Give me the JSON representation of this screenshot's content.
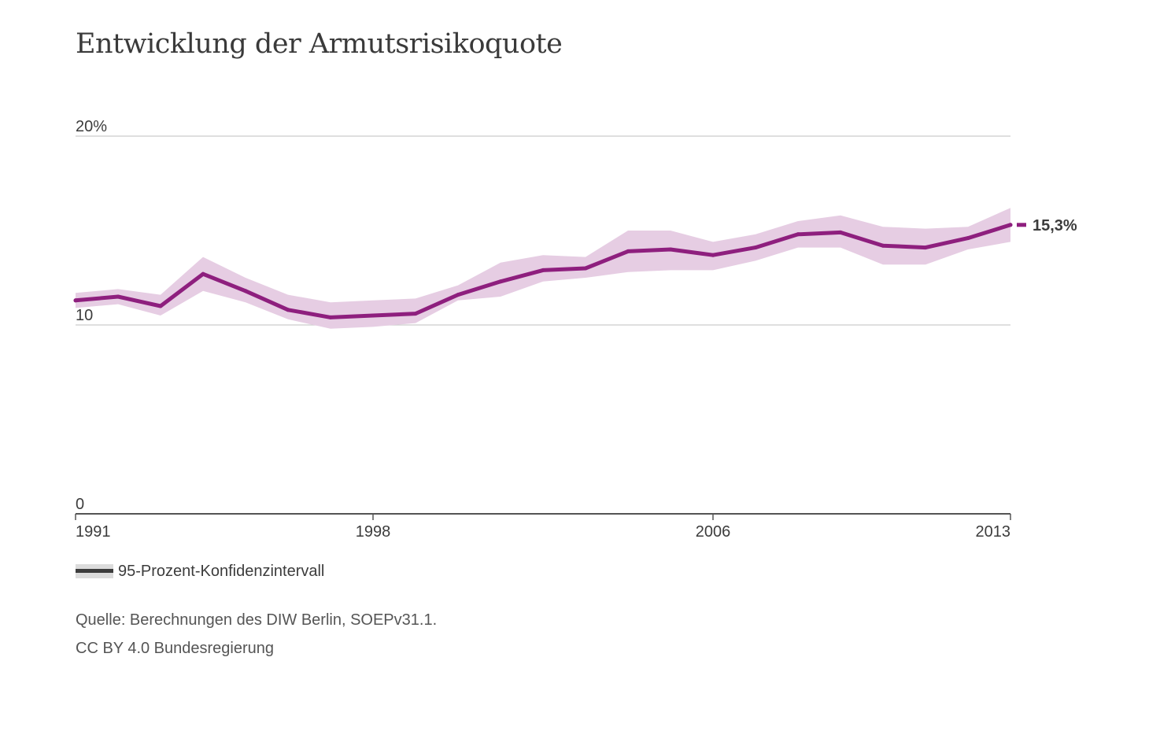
{
  "title": "Entwicklung der Armutsrisikoquote",
  "legend": {
    "label": "95-Prozent-Konfidenzintervall"
  },
  "footer": {
    "source": "Quelle: Berechnungen des DIW Berlin, SOEPv31.1.",
    "license": "CC BY 4.0 Bundesregierung"
  },
  "colors": {
    "line": "#8e1f7e",
    "band": "#e6cde3",
    "grid": "#cccccc",
    "axis": "#555555",
    "text": "#3c3c3c"
  },
  "chart_data": {
    "type": "line",
    "title": "Entwicklung der Armutsrisikoquote",
    "xlabel": "",
    "ylabel": "",
    "xlim": [
      1991,
      2013
    ],
    "ylim": [
      0,
      20
    ],
    "grid": true,
    "y_ticks": [
      {
        "value": 0,
        "label": "0"
      },
      {
        "value": 10,
        "label": "10"
      },
      {
        "value": 20,
        "label": "20%"
      }
    ],
    "x_ticks": [
      {
        "value": 1991,
        "label": "1991"
      },
      {
        "value": 1998,
        "label": "1998"
      },
      {
        "value": 2006,
        "label": "2006"
      },
      {
        "value": 2013,
        "label": "2013"
      }
    ],
    "series": [
      {
        "x": [
          1991,
          1992,
          1993,
          1994,
          1995,
          1996,
          1997,
          1998,
          1999,
          2000,
          2001,
          2002,
          2003,
          2004,
          2005,
          2006,
          2007,
          2008,
          2009,
          2010,
          2011,
          2012,
          2013
        ],
        "values": [
          11.3,
          11.5,
          11.0,
          12.7,
          11.8,
          10.8,
          10.4,
          10.5,
          10.6,
          11.6,
          12.3,
          12.9,
          13.0,
          13.9,
          14.0,
          13.7,
          14.1,
          14.8,
          14.9,
          14.2,
          14.1,
          14.6,
          15.3
        ],
        "lower": [
          10.9,
          11.1,
          10.5,
          11.8,
          11.2,
          10.3,
          9.8,
          9.9,
          10.1,
          11.3,
          11.5,
          12.3,
          12.5,
          12.8,
          12.9,
          12.9,
          13.4,
          14.1,
          14.1,
          13.2,
          13.2,
          14.0,
          14.4
        ],
        "upper": [
          11.7,
          11.9,
          11.6,
          13.6,
          12.5,
          11.6,
          11.2,
          11.3,
          11.4,
          12.1,
          13.3,
          13.7,
          13.6,
          15.0,
          15.0,
          14.4,
          14.8,
          15.5,
          15.8,
          15.2,
          15.1,
          15.2,
          16.2
        ]
      }
    ],
    "end_label": "15,3%"
  }
}
